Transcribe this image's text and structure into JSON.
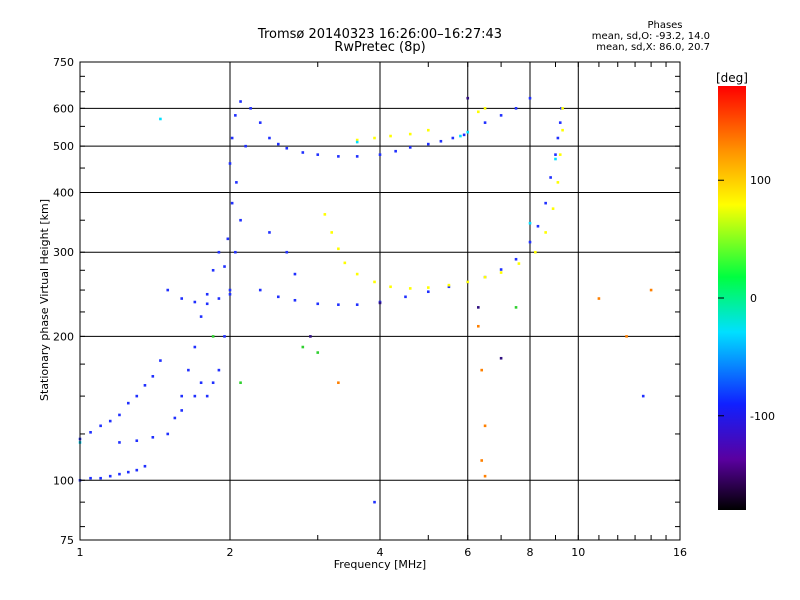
{
  "header": {
    "title_line1": "Tromsø 20140323 16:26:00–16:27:43",
    "title_line2": "RwPretec (8p)"
  },
  "phases": {
    "heading": "Phases",
    "line1": "mean, sd,O: -93.2, 14.0",
    "line2": "mean, sd,X:  86.0, 20.7"
  },
  "colorbar": {
    "label": "[deg]",
    "range": [
      -180,
      180
    ],
    "ticks": [
      {
        "value": 100,
        "label": "100"
      },
      {
        "value": 0,
        "label": "0"
      },
      {
        "value": -100,
        "label": "-100"
      }
    ]
  },
  "chart_data": {
    "type": "scatter",
    "xlabel": "Frequency [MHz]",
    "ylabel": "Stationary phase Virtual Height [km]",
    "x_scale": "log",
    "y_scale": "log",
    "xlim": [
      1,
      16
    ],
    "ylim": [
      75,
      750
    ],
    "xticks": [
      {
        "value": 1,
        "label": "1"
      },
      {
        "value": 2,
        "label": "2"
      },
      {
        "value": 4,
        "label": "4"
      },
      {
        "value": 6,
        "label": "6"
      },
      {
        "value": 8,
        "label": "8"
      },
      {
        "value": 10,
        "label": "10"
      },
      {
        "value": 16,
        "label": "16"
      }
    ],
    "yticks": [
      {
        "value": 75,
        "label": "75"
      },
      {
        "value": 100,
        "label": "100"
      },
      {
        "value": 200,
        "label": "200"
      },
      {
        "value": 300,
        "label": "300"
      },
      {
        "value": 400,
        "label": "400"
      },
      {
        "value": 500,
        "label": "500"
      },
      {
        "value": 600,
        "label": "600"
      },
      {
        "value": 750,
        "label": "750"
      }
    ],
    "grid_x": [
      2,
      4,
      6,
      8,
      10
    ],
    "grid_y": [
      100,
      200,
      300,
      400,
      500,
      600
    ],
    "series": [
      {
        "color": "#2030ff",
        "points": [
          [
            1.0,
            100
          ],
          [
            1.05,
            101
          ],
          [
            1.1,
            101
          ],
          [
            1.15,
            102
          ],
          [
            1.2,
            103
          ],
          [
            1.25,
            104
          ],
          [
            1.3,
            105
          ],
          [
            1.35,
            107
          ],
          [
            1.0,
            122
          ],
          [
            1.05,
            126
          ],
          [
            1.1,
            130
          ],
          [
            1.15,
            133
          ],
          [
            1.2,
            137
          ],
          [
            1.25,
            145
          ],
          [
            1.3,
            150
          ],
          [
            1.35,
            158
          ],
          [
            1.4,
            165
          ],
          [
            1.45,
            178
          ],
          [
            1.2,
            120
          ],
          [
            1.3,
            121
          ],
          [
            1.4,
            123
          ],
          [
            1.5,
            125
          ],
          [
            1.55,
            135
          ],
          [
            1.6,
            150
          ],
          [
            1.65,
            170
          ],
          [
            1.7,
            190
          ],
          [
            1.75,
            220
          ],
          [
            1.8,
            245
          ],
          [
            1.85,
            275
          ],
          [
            1.9,
            300
          ],
          [
            1.6,
            140
          ],
          [
            1.7,
            150
          ],
          [
            1.75,
            160
          ],
          [
            1.8,
            150
          ],
          [
            1.85,
            160
          ],
          [
            1.9,
            170
          ],
          [
            1.95,
            200
          ],
          [
            2.0,
            250
          ],
          [
            2.05,
            300
          ],
          [
            2.1,
            350
          ],
          [
            1.95,
            280
          ],
          [
            1.98,
            320
          ],
          [
            2.02,
            380
          ],
          [
            2.06,
            420
          ],
          [
            2.0,
            460
          ],
          [
            2.02,
            520
          ],
          [
            2.05,
            580
          ],
          [
            2.1,
            620
          ],
          [
            2.2,
            600
          ],
          [
            2.3,
            560
          ],
          [
            2.15,
            500
          ],
          [
            1.5,
            250
          ],
          [
            1.6,
            240
          ],
          [
            1.7,
            236
          ],
          [
            1.8,
            234
          ],
          [
            1.9,
            240
          ],
          [
            2.0,
            245
          ],
          [
            2.4,
            520
          ],
          [
            2.5,
            505
          ],
          [
            2.6,
            495
          ],
          [
            2.8,
            485
          ],
          [
            3.0,
            480
          ],
          [
            3.3,
            476
          ],
          [
            3.6,
            476
          ],
          [
            4.0,
            480
          ],
          [
            4.3,
            488
          ],
          [
            4.6,
            497
          ],
          [
            5.0,
            505
          ],
          [
            5.3,
            512
          ],
          [
            5.6,
            520
          ],
          [
            5.9,
            528
          ],
          [
            2.3,
            250
          ],
          [
            2.5,
            242
          ],
          [
            2.7,
            238
          ],
          [
            3.0,
            234
          ],
          [
            3.3,
            233
          ],
          [
            3.6,
            233
          ],
          [
            4.0,
            236
          ],
          [
            4.5,
            242
          ],
          [
            5.0,
            248
          ],
          [
            5.5,
            254
          ],
          [
            6.0,
            260
          ],
          [
            6.5,
            266
          ],
          [
            7.0,
            276
          ],
          [
            7.5,
            290
          ],
          [
            8.0,
            315
          ],
          [
            8.3,
            340
          ],
          [
            8.6,
            380
          ],
          [
            8.8,
            430
          ],
          [
            9.0,
            480
          ],
          [
            9.1,
            520
          ],
          [
            9.2,
            560
          ],
          [
            9.25,
            600
          ],
          [
            6.5,
            560
          ],
          [
            7.0,
            580
          ],
          [
            7.5,
            600
          ],
          [
            8.0,
            630
          ],
          [
            2.7,
            270
          ],
          [
            2.6,
            300
          ],
          [
            2.4,
            330
          ],
          [
            3.9,
            90
          ],
          [
            13.5,
            150
          ]
        ]
      },
      {
        "color": "#ffff00",
        "points": [
          [
            3.1,
            360
          ],
          [
            3.2,
            330
          ],
          [
            3.3,
            305
          ],
          [
            3.4,
            285
          ],
          [
            3.6,
            270
          ],
          [
            3.9,
            260
          ],
          [
            4.2,
            254
          ],
          [
            4.6,
            252
          ],
          [
            5.0,
            253
          ],
          [
            5.5,
            256
          ],
          [
            6.0,
            260
          ],
          [
            6.5,
            266
          ],
          [
            7.0,
            272
          ],
          [
            7.6,
            284
          ],
          [
            8.2,
            300
          ],
          [
            8.6,
            330
          ],
          [
            8.9,
            370
          ],
          [
            9.1,
            420
          ],
          [
            9.2,
            480
          ],
          [
            9.3,
            540
          ],
          [
            9.3,
            600
          ],
          [
            3.6,
            515
          ],
          [
            3.9,
            520
          ],
          [
            4.2,
            525
          ],
          [
            4.6,
            530
          ],
          [
            5.0,
            540
          ],
          [
            6.3,
            590
          ],
          [
            6.5,
            600
          ]
        ]
      },
      {
        "color": "#ff8000",
        "points": [
          [
            6.4,
            170
          ],
          [
            6.5,
            130
          ],
          [
            6.4,
            110
          ],
          [
            6.5,
            102
          ],
          [
            6.3,
            210
          ],
          [
            3.3,
            160
          ],
          [
            11.0,
            240
          ],
          [
            12.5,
            200
          ],
          [
            14.0,
            250
          ]
        ]
      },
      {
        "color": "#00e0ff",
        "points": [
          [
            5.8,
            525
          ],
          [
            6.0,
            535
          ],
          [
            8.0,
            345
          ],
          [
            1.0,
            120
          ],
          [
            1.45,
            570
          ],
          [
            9.0,
            470
          ],
          [
            3.6,
            510
          ]
        ]
      },
      {
        "color": "#30d030",
        "points": [
          [
            2.8,
            190
          ],
          [
            3.0,
            185
          ],
          [
            2.1,
            160
          ],
          [
            1.85,
            200
          ],
          [
            7.5,
            230
          ]
        ]
      },
      {
        "color": "#301080",
        "points": [
          [
            4.0,
            235
          ],
          [
            7.0,
            180
          ],
          [
            2.9,
            200
          ],
          [
            6.3,
            230
          ],
          [
            6.0,
            630
          ]
        ]
      }
    ]
  }
}
